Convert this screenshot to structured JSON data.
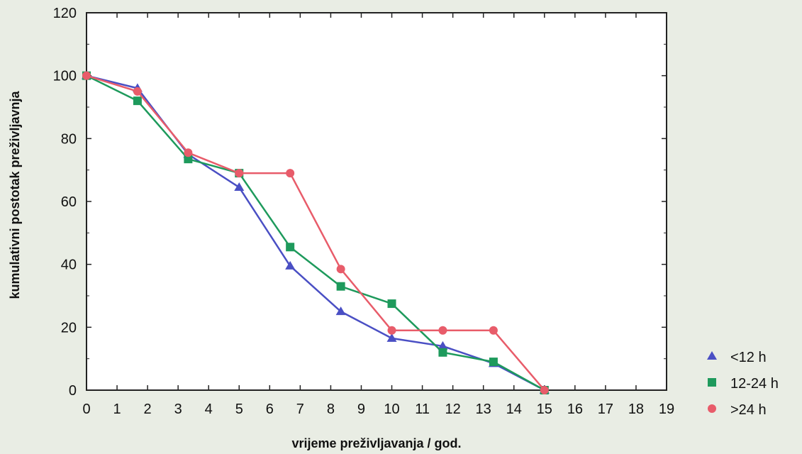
{
  "chart_data": {
    "type": "line",
    "title": "",
    "xlabel": "vrijeme preživljavanja / god.",
    "ylabel": "kumulativni postotak preživljavnja",
    "xlim": [
      0,
      19
    ],
    "ylim": [
      0,
      120
    ],
    "x_ticks": [
      0,
      1,
      2,
      3,
      4,
      5,
      6,
      7,
      8,
      9,
      10,
      11,
      12,
      13,
      14,
      15,
      16,
      17,
      18,
      19
    ],
    "y_ticks": [
      0,
      20,
      40,
      60,
      80,
      100,
      120
    ],
    "grid": false,
    "legend_position": "bottom-right, outside plot",
    "series": [
      {
        "name": "<12 h",
        "color": "#4a4fc4",
        "marker": "triangle",
        "points": [
          [
            0,
            100
          ],
          [
            1.67,
            96
          ],
          [
            3.33,
            75
          ],
          [
            5,
            64.5
          ],
          [
            6.67,
            39.5
          ],
          [
            8.33,
            25
          ],
          [
            10,
            16.5
          ],
          [
            11.67,
            14
          ],
          [
            13.33,
            8.5
          ],
          [
            15,
            0
          ]
        ]
      },
      {
        "name": "12-24 h",
        "color": "#1e9a5c",
        "marker": "square",
        "points": [
          [
            0,
            100
          ],
          [
            1.67,
            92
          ],
          [
            3.33,
            73.5
          ],
          [
            5,
            69
          ],
          [
            6.67,
            45.5
          ],
          [
            8.33,
            33
          ],
          [
            10,
            27.5
          ],
          [
            11.67,
            12
          ],
          [
            13.33,
            9
          ],
          [
            15,
            0
          ]
        ]
      },
      {
        "name": ">24 h",
        "color": "#e85c6a",
        "marker": "circle",
        "points": [
          [
            0,
            100
          ],
          [
            1.67,
            95
          ],
          [
            3.33,
            75.5
          ],
          [
            5,
            69
          ],
          [
            6.67,
            69
          ],
          [
            8.33,
            38.5
          ],
          [
            10,
            19
          ],
          [
            11.67,
            19
          ],
          [
            13.33,
            19
          ],
          [
            15,
            0
          ]
        ]
      }
    ]
  }
}
